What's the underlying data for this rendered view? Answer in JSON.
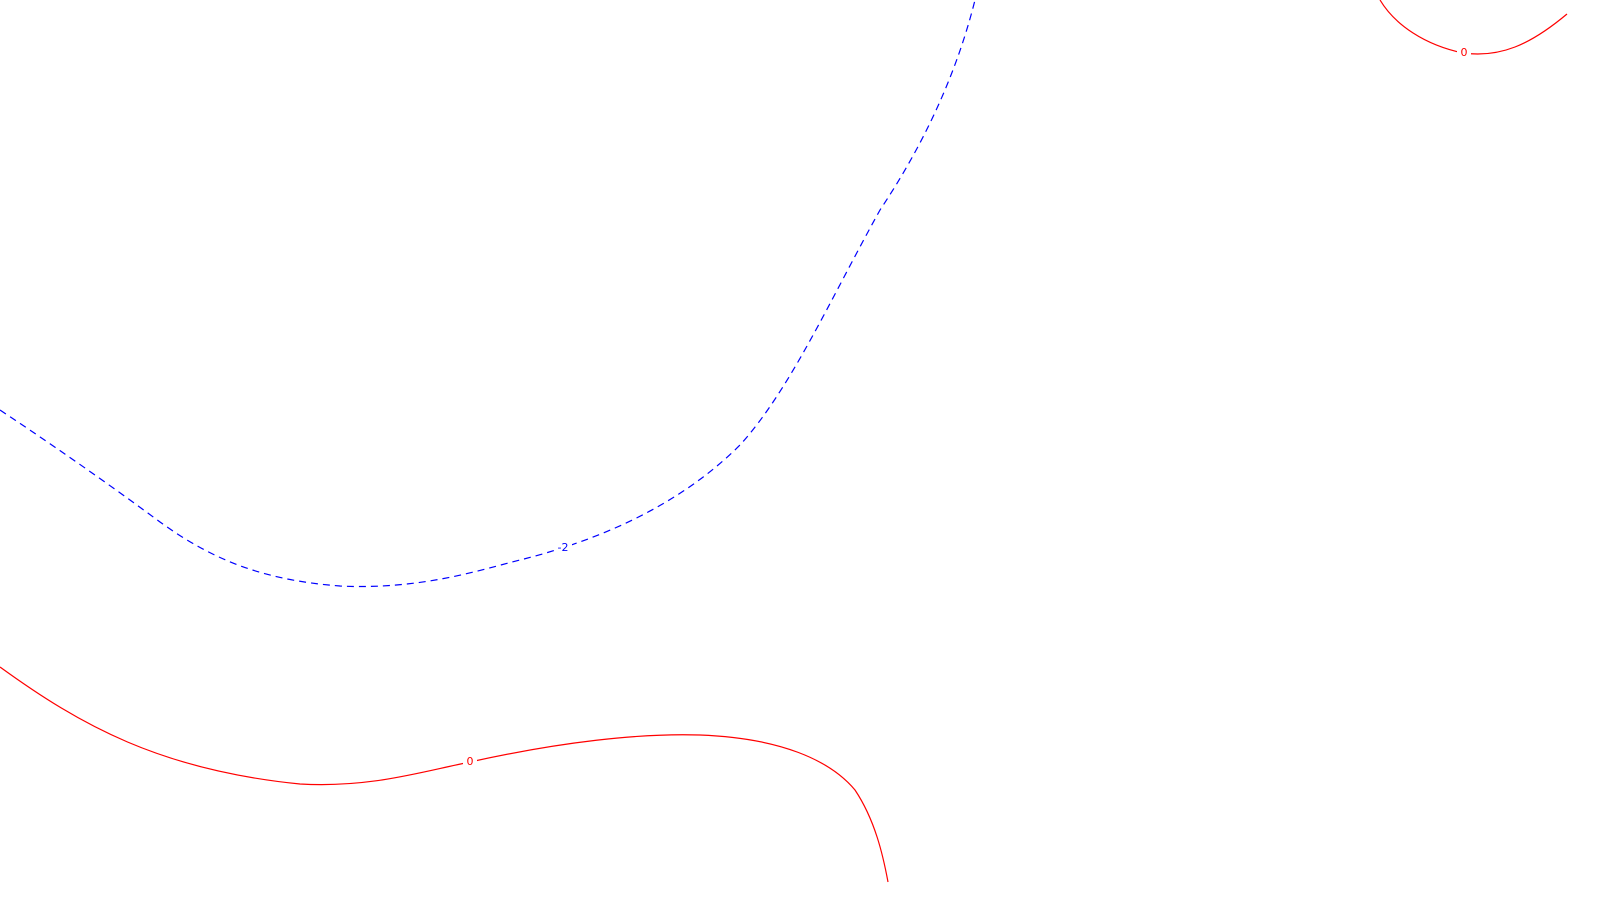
{
  "map": {
    "contours": [
      {
        "id": "contour-neg2",
        "value": -2,
        "label": "-2",
        "color": "#0000ff",
        "style": "dashed"
      },
      {
        "id": "contour-0-bottom",
        "value": 0,
        "label": "0",
        "color": "#ff0000",
        "style": "solid"
      },
      {
        "id": "contour-0-topright",
        "value": 0,
        "label": "0",
        "color": "#ff0000",
        "style": "solid"
      }
    ],
    "background": "#ffffff"
  }
}
